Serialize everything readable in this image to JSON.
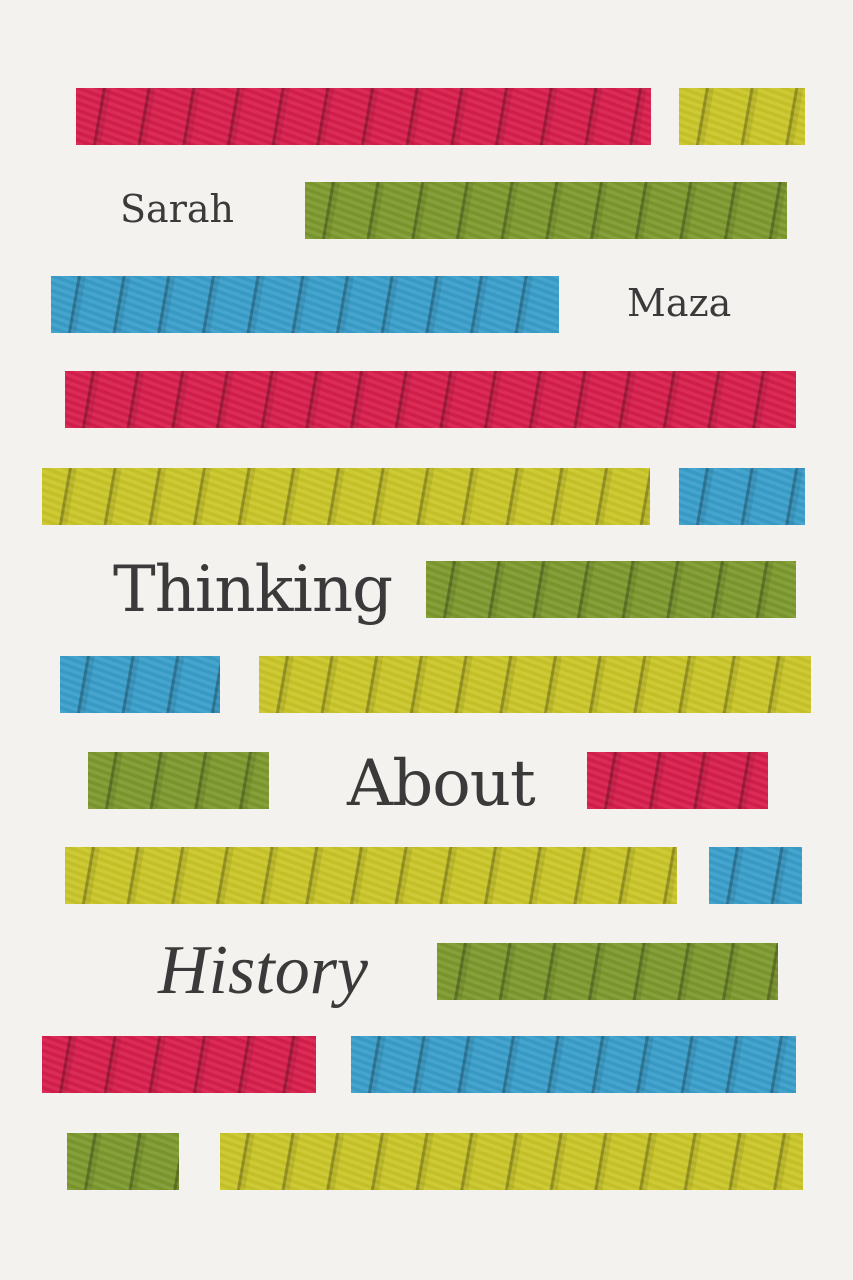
{
  "cover": {
    "author_first": "Sarah",
    "author_last": "Maza",
    "title_line1": "Thinking",
    "title_line2": "About",
    "title_line3": "History"
  },
  "colors": {
    "background": "#f3f2ef",
    "red": "#d81f4d",
    "yellow": "#cbc72a",
    "green": "#7e9a2f",
    "blue": "#3a9fcb",
    "text": "#3b3a3a"
  }
}
